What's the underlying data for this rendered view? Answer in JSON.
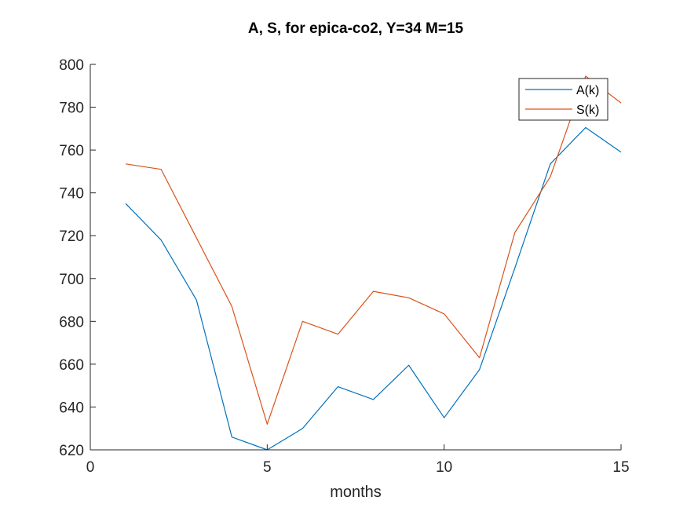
{
  "chart_data": {
    "type": "line",
    "title": "A, S, for epica-co2, Y=34 M=15",
    "xlabel": "months",
    "ylabel": "",
    "xlim": [
      0,
      15
    ],
    "ylim": [
      620,
      800
    ],
    "xticks": [
      0,
      5,
      10,
      15
    ],
    "yticks": [
      620,
      640,
      660,
      680,
      700,
      720,
      740,
      760,
      780,
      800
    ],
    "grid": false,
    "legend_location": "top-right",
    "x": [
      1,
      2,
      3,
      4,
      5,
      6,
      7,
      8,
      9,
      10,
      11,
      12,
      13,
      14,
      15
    ],
    "series": [
      {
        "name": "A(k)",
        "color": "#0072BD",
        "values": [
          735,
          718,
          690,
          626,
          620,
          630,
          649.5,
          643.5,
          659.5,
          635,
          657.5,
          705,
          753.5,
          770.5,
          759
        ]
      },
      {
        "name": "S(k)",
        "color": "#D95319",
        "values": [
          753.5,
          751,
          719,
          687,
          632,
          680,
          674,
          694,
          691,
          683.5,
          663,
          721.5,
          747.5,
          794.5,
          782
        ]
      }
    ]
  }
}
